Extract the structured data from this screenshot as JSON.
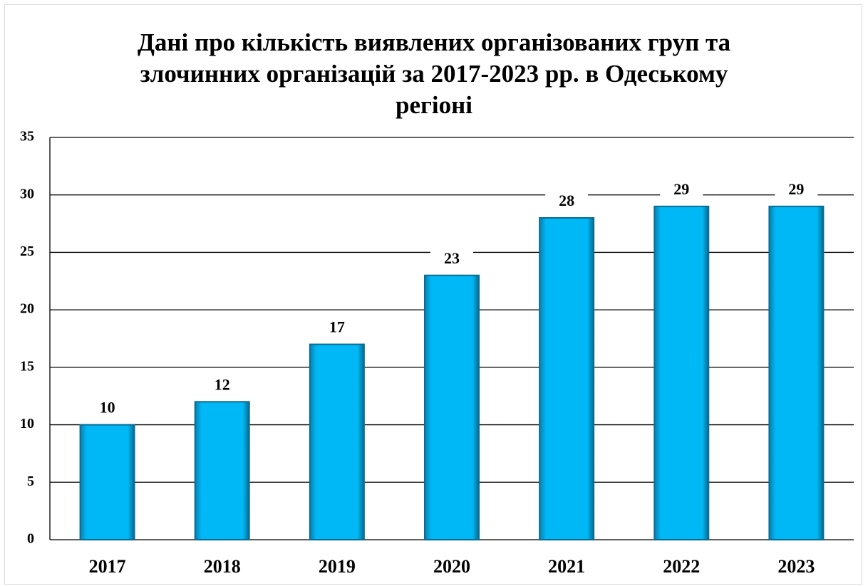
{
  "chart_data": {
    "type": "bar",
    "title": "Дані про кількість виявлених організованих груп та злочинних організацій за 2017-2023 рр. в Одеському регіоні",
    "categories": [
      "2017",
      "2018",
      "2019",
      "2020",
      "2021",
      "2022",
      "2023"
    ],
    "values": [
      10,
      12,
      17,
      23,
      28,
      29,
      29
    ],
    "color": "#00b8f5",
    "ylim": [
      0,
      35
    ],
    "yticks": [
      0,
      5,
      10,
      15,
      20,
      25,
      30,
      35
    ],
    "grid": true
  }
}
